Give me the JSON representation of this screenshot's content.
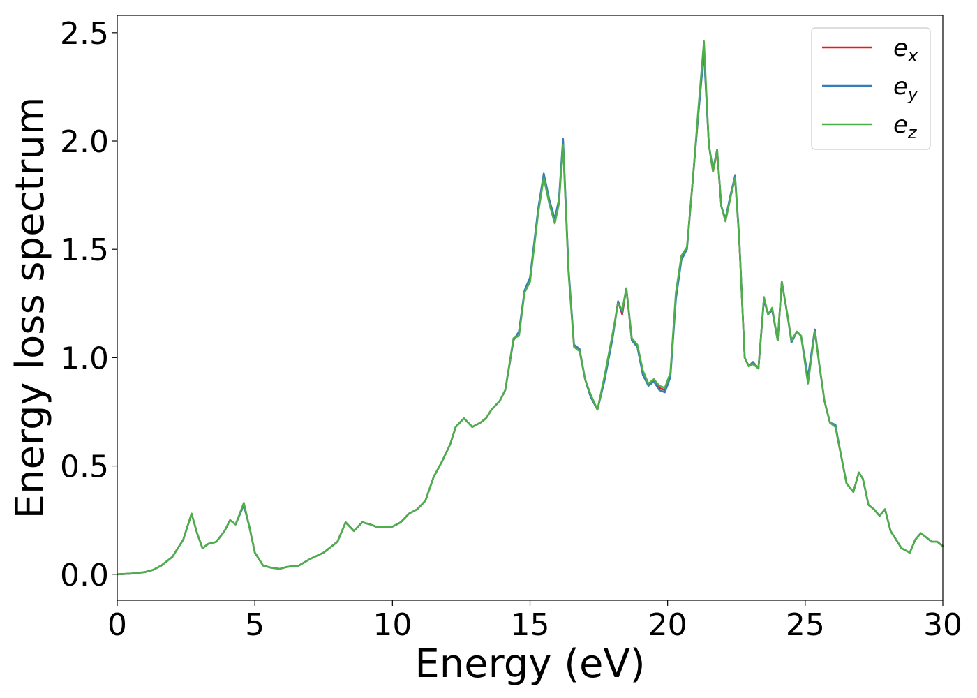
{
  "chart_data": {
    "type": "line",
    "xlabel": "Energy (eV)",
    "ylabel": "Energy loss spectrum",
    "xlim": [
      0,
      30
    ],
    "ylim": [
      -0.12,
      2.58
    ],
    "xticks": [
      0,
      5,
      10,
      15,
      20,
      25,
      30
    ],
    "xtick_labels": [
      "0",
      "5",
      "10",
      "15",
      "20",
      "25",
      "30"
    ],
    "yticks": [
      0.0,
      0.5,
      1.0,
      1.5,
      2.0,
      2.5
    ],
    "ytick_labels": [
      "0.0",
      "0.5",
      "1.0",
      "1.5",
      "2.0",
      "2.5"
    ],
    "grid": false,
    "legend_position": "top-right",
    "x": [
      0,
      0.5,
      1.0,
      1.3,
      1.6,
      2.0,
      2.4,
      2.7,
      2.9,
      3.1,
      3.3,
      3.6,
      3.9,
      4.1,
      4.3,
      4.6,
      4.8,
      5.0,
      5.3,
      5.6,
      5.9,
      6.2,
      6.6,
      7.0,
      7.5,
      8.0,
      8.3,
      8.6,
      8.9,
      9.2,
      9.4,
      9.6,
      10.0,
      10.3,
      10.6,
      10.9,
      11.2,
      11.5,
      11.8,
      12.1,
      12.3,
      12.6,
      12.9,
      13.2,
      13.4,
      13.6,
      13.9,
      14.1,
      14.4,
      14.6,
      14.8,
      15.0,
      15.3,
      15.5,
      15.7,
      15.9,
      16.05,
      16.2,
      16.4,
      16.6,
      16.8,
      17.0,
      17.2,
      17.45,
      17.7,
      18.0,
      18.2,
      18.35,
      18.5,
      18.7,
      18.9,
      19.1,
      19.3,
      19.5,
      19.7,
      19.9,
      20.1,
      20.3,
      20.5,
      20.7,
      20.9,
      21.1,
      21.32,
      21.5,
      21.65,
      21.8,
      21.95,
      22.1,
      22.3,
      22.45,
      22.6,
      22.8,
      22.95,
      23.1,
      23.3,
      23.5,
      23.65,
      23.8,
      24.0,
      24.15,
      24.35,
      24.5,
      24.7,
      24.85,
      25.1,
      25.35,
      25.5,
      25.7,
      25.9,
      26.1,
      26.3,
      26.5,
      26.75,
      26.95,
      27.1,
      27.3,
      27.5,
      27.7,
      27.9,
      28.1,
      28.3,
      28.5,
      28.8,
      29.0,
      29.2,
      29.4,
      29.6,
      29.8,
      30.0
    ],
    "series": [
      {
        "name": "e_x",
        "color": "#e41a1c",
        "values": [
          0.0,
          0.003,
          0.01,
          0.02,
          0.04,
          0.08,
          0.16,
          0.28,
          0.19,
          0.12,
          0.14,
          0.15,
          0.2,
          0.25,
          0.23,
          0.32,
          0.22,
          0.1,
          0.04,
          0.03,
          0.025,
          0.035,
          0.04,
          0.07,
          0.1,
          0.15,
          0.24,
          0.2,
          0.24,
          0.23,
          0.22,
          0.22,
          0.22,
          0.24,
          0.28,
          0.3,
          0.34,
          0.45,
          0.52,
          0.6,
          0.68,
          0.72,
          0.68,
          0.7,
          0.72,
          0.76,
          0.8,
          0.85,
          1.08,
          1.12,
          1.3,
          1.36,
          1.68,
          1.84,
          1.72,
          1.63,
          1.72,
          2.0,
          1.4,
          1.05,
          1.03,
          0.9,
          0.82,
          0.76,
          0.9,
          1.1,
          1.26,
          1.2,
          1.32,
          1.08,
          1.05,
          0.93,
          0.88,
          0.9,
          0.86,
          0.85,
          0.92,
          1.28,
          1.46,
          1.5,
          1.8,
          2.1,
          2.42,
          1.98,
          1.86,
          1.95,
          1.7,
          1.63,
          1.75,
          1.83,
          1.55,
          1.0,
          0.96,
          0.98,
          0.95,
          1.27,
          1.2,
          1.22,
          1.08,
          1.35,
          1.2,
          1.08,
          1.12,
          1.1,
          0.9,
          1.13,
          0.98,
          0.8,
          0.7,
          0.68,
          0.55,
          0.42,
          0.38,
          0.47,
          0.44,
          0.32,
          0.3,
          0.27,
          0.3,
          0.2,
          0.16,
          0.12,
          0.1,
          0.16,
          0.19,
          0.17,
          0.15,
          0.15,
          0.13
        ]
      },
      {
        "name": "e_y",
        "color": "#377eb8",
        "values": [
          0.0,
          0.003,
          0.01,
          0.02,
          0.04,
          0.08,
          0.16,
          0.28,
          0.19,
          0.12,
          0.14,
          0.15,
          0.2,
          0.25,
          0.23,
          0.32,
          0.22,
          0.1,
          0.04,
          0.03,
          0.025,
          0.035,
          0.04,
          0.07,
          0.1,
          0.15,
          0.24,
          0.2,
          0.24,
          0.23,
          0.22,
          0.22,
          0.22,
          0.24,
          0.28,
          0.3,
          0.34,
          0.45,
          0.52,
          0.6,
          0.68,
          0.72,
          0.68,
          0.7,
          0.72,
          0.76,
          0.8,
          0.85,
          1.08,
          1.12,
          1.31,
          1.37,
          1.69,
          1.85,
          1.73,
          1.64,
          1.73,
          2.01,
          1.41,
          1.06,
          1.04,
          0.9,
          0.82,
          0.76,
          0.89,
          1.09,
          1.26,
          1.21,
          1.32,
          1.08,
          1.05,
          0.92,
          0.87,
          0.89,
          0.85,
          0.84,
          0.91,
          1.27,
          1.45,
          1.5,
          1.8,
          2.1,
          2.41,
          1.98,
          1.87,
          1.96,
          1.7,
          1.64,
          1.76,
          1.84,
          1.56,
          1.0,
          0.96,
          0.98,
          0.95,
          1.27,
          1.2,
          1.22,
          1.08,
          1.35,
          1.2,
          1.07,
          1.12,
          1.1,
          0.91,
          1.13,
          0.98,
          0.8,
          0.7,
          0.69,
          0.55,
          0.42,
          0.38,
          0.47,
          0.44,
          0.32,
          0.3,
          0.27,
          0.3,
          0.2,
          0.16,
          0.12,
          0.1,
          0.16,
          0.19,
          0.17,
          0.15,
          0.15,
          0.13
        ]
      },
      {
        "name": "e_z",
        "color": "#4daf4a",
        "values": [
          0.0,
          0.003,
          0.01,
          0.02,
          0.04,
          0.08,
          0.16,
          0.28,
          0.19,
          0.12,
          0.14,
          0.15,
          0.2,
          0.25,
          0.23,
          0.33,
          0.22,
          0.1,
          0.04,
          0.03,
          0.025,
          0.035,
          0.04,
          0.07,
          0.1,
          0.15,
          0.24,
          0.2,
          0.24,
          0.23,
          0.22,
          0.22,
          0.22,
          0.24,
          0.28,
          0.3,
          0.34,
          0.45,
          0.52,
          0.6,
          0.68,
          0.72,
          0.68,
          0.7,
          0.72,
          0.76,
          0.8,
          0.85,
          1.09,
          1.1,
          1.3,
          1.35,
          1.67,
          1.83,
          1.71,
          1.62,
          1.71,
          1.98,
          1.39,
          1.05,
          1.03,
          0.9,
          0.83,
          0.76,
          0.91,
          1.11,
          1.25,
          1.22,
          1.32,
          1.09,
          1.06,
          0.94,
          0.88,
          0.9,
          0.87,
          0.86,
          0.93,
          1.3,
          1.47,
          1.51,
          1.8,
          2.12,
          2.46,
          1.98,
          1.86,
          1.96,
          1.7,
          1.63,
          1.75,
          1.83,
          1.55,
          1.0,
          0.96,
          0.97,
          0.95,
          1.28,
          1.2,
          1.23,
          1.08,
          1.35,
          1.2,
          1.08,
          1.12,
          1.1,
          0.88,
          1.12,
          0.98,
          0.8,
          0.7,
          0.68,
          0.55,
          0.42,
          0.38,
          0.47,
          0.44,
          0.32,
          0.3,
          0.27,
          0.3,
          0.2,
          0.16,
          0.12,
          0.1,
          0.16,
          0.19,
          0.17,
          0.15,
          0.15,
          0.13
        ]
      }
    ]
  },
  "legend": {
    "items": [
      {
        "base": "e",
        "sub": "x",
        "color": "#e41a1c"
      },
      {
        "base": "e",
        "sub": "y",
        "color": "#377eb8"
      },
      {
        "base": "e",
        "sub": "z",
        "color": "#4daf4a"
      }
    ]
  }
}
